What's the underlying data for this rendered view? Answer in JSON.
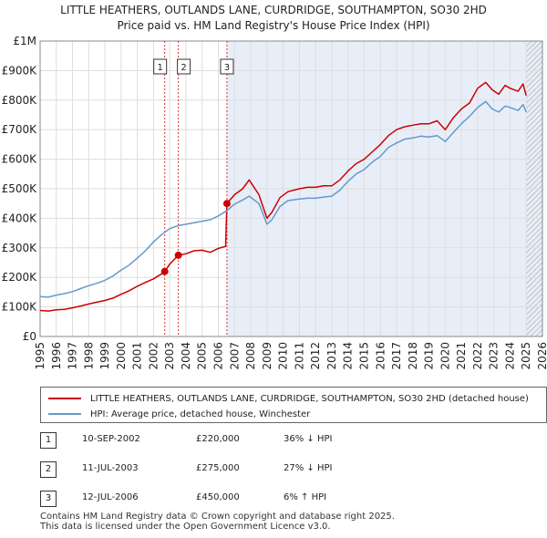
{
  "title": {
    "line1": "LITTLE HEATHERS, OUTLANDS LANE, CURDRIDGE, SOUTHAMPTON, SO30 2HD",
    "line2": "Price paid vs. HM Land Registry's House Price Index (HPI)"
  },
  "colors": {
    "property": "#cc0000",
    "hpi": "#6699cc",
    "shade": "#e8eef8",
    "grid": "#dddddd",
    "marker_line": "#cc0000"
  },
  "legend": {
    "property_label": "LITTLE HEATHERS, OUTLANDS LANE, CURDRIDGE, SOUTHAMPTON, SO30 2HD (detached house)",
    "hpi_label": "HPI: Average price, detached house, Winchester"
  },
  "transactions": [
    {
      "num": "1",
      "date": "10-SEP-2002",
      "price": "£220,000",
      "hpi_diff": "36% ↓ HPI"
    },
    {
      "num": "2",
      "date": "11-JUL-2003",
      "price": "£275,000",
      "hpi_diff": "27% ↓ HPI"
    },
    {
      "num": "3",
      "date": "12-JUL-2006",
      "price": "£450,000",
      "hpi_diff": "6% ↑ HPI"
    }
  ],
  "footer": {
    "line1": "Contains HM Land Registry data © Crown copyright and database right 2025.",
    "line2": "This data is licensed under the Open Government Licence v3.0."
  },
  "chart_data": {
    "type": "line",
    "title": "LITTLE HEATHERS, OUTLANDS LANE, CURDRIDGE, SOUTHAMPTON, SO30 2HD — Price paid vs. HM Land Registry's House Price Index (HPI)",
    "xlabel": "",
    "ylabel": "",
    "xlim": [
      1995,
      2026
    ],
    "ylim": [
      0,
      1000000
    ],
    "x_ticks": [
      1995,
      1996,
      1997,
      1998,
      1999,
      2000,
      2001,
      2002,
      2003,
      2004,
      2005,
      2006,
      2007,
      2008,
      2009,
      2010,
      2011,
      2012,
      2013,
      2014,
      2015,
      2016,
      2017,
      2018,
      2019,
      2020,
      2021,
      2022,
      2023,
      2024,
      2025,
      2026
    ],
    "y_ticks": [
      {
        "value": 0,
        "label": "£0"
      },
      {
        "value": 100000,
        "label": "£100K"
      },
      {
        "value": 200000,
        "label": "£200K"
      },
      {
        "value": 300000,
        "label": "£300K"
      },
      {
        "value": 400000,
        "label": "£400K"
      },
      {
        "value": 500000,
        "label": "£500K"
      },
      {
        "value": 600000,
        "label": "£600K"
      },
      {
        "value": 700000,
        "label": "£700K"
      },
      {
        "value": 800000,
        "label": "£800K"
      },
      {
        "value": 900000,
        "label": "£900K"
      },
      {
        "value": 1000000,
        "label": "£1M"
      }
    ],
    "grid": true,
    "shaded_range": [
      2006.53,
      2026
    ],
    "hatched_range": [
      2025.0,
      2026
    ],
    "sale_markers": [
      {
        "label": "1",
        "x": 2002.69,
        "y": 220000
      },
      {
        "label": "2",
        "x": 2003.53,
        "y": 275000
      },
      {
        "label": "3",
        "x": 2006.53,
        "y": 450000
      }
    ],
    "series": [
      {
        "name": "LITTLE HEATHERS, OUTLANDS LANE, CURDRIDGE, SOUTHAMPTON, SO30 2HD (detached house)",
        "color": "#cc0000",
        "x": [
          1995.0,
          1995.5,
          1996.0,
          1996.5,
          1997.0,
          1997.5,
          1998.0,
          1998.5,
          1999.0,
          1999.5,
          2000.0,
          2000.5,
          2001.0,
          2001.5,
          2002.0,
          2002.5,
          2002.69,
          2003.0,
          2003.53,
          2004.0,
          2004.5,
          2005.0,
          2005.5,
          2006.0,
          2006.45,
          2006.53,
          2007.0,
          2007.5,
          2007.9,
          2008.5,
          2009.0,
          2009.3,
          2009.8,
          2010.3,
          2011.0,
          2011.5,
          2012.0,
          2012.5,
          2013.0,
          2013.5,
          2014.0,
          2014.5,
          2015.0,
          2015.5,
          2016.0,
          2016.5,
          2017.0,
          2017.5,
          2018.0,
          2018.5,
          2019.0,
          2019.5,
          2020.0,
          2020.5,
          2021.0,
          2021.5,
          2022.0,
          2022.5,
          2022.9,
          2023.3,
          2023.7,
          2024.0,
          2024.5,
          2024.8,
          2025.0
        ],
        "values": [
          88000,
          86000,
          90000,
          92000,
          97000,
          103000,
          110000,
          116000,
          122000,
          130000,
          143000,
          155000,
          170000,
          183000,
          195000,
          212000,
          220000,
          245000,
          275000,
          280000,
          290000,
          292000,
          285000,
          298000,
          305000,
          450000,
          480000,
          500000,
          530000,
          480000,
          400000,
          420000,
          470000,
          490000,
          500000,
          505000,
          505000,
          510000,
          510000,
          530000,
          560000,
          585000,
          600000,
          625000,
          650000,
          680000,
          700000,
          710000,
          715000,
          720000,
          720000,
          730000,
          700000,
          740000,
          770000,
          790000,
          840000,
          860000,
          835000,
          820000,
          850000,
          840000,
          830000,
          855000,
          815000
        ]
      },
      {
        "name": "HPI: Average price, detached house, Winchester",
        "color": "#6699cc",
        "x": [
          1995.0,
          1995.5,
          1996.0,
          1996.5,
          1997.0,
          1997.5,
          1998.0,
          1998.5,
          1999.0,
          1999.5,
          2000.0,
          2000.5,
          2001.0,
          2001.5,
          2002.0,
          2002.5,
          2003.0,
          2003.5,
          2004.0,
          2004.5,
          2005.0,
          2005.5,
          2006.0,
          2006.5,
          2007.0,
          2007.5,
          2007.9,
          2008.5,
          2009.0,
          2009.3,
          2009.8,
          2010.3,
          2011.0,
          2011.5,
          2012.0,
          2012.5,
          2013.0,
          2013.5,
          2014.0,
          2014.5,
          2015.0,
          2015.5,
          2016.0,
          2016.5,
          2017.0,
          2017.5,
          2018.0,
          2018.5,
          2019.0,
          2019.5,
          2020.0,
          2020.5,
          2021.0,
          2021.5,
          2022.0,
          2022.5,
          2022.9,
          2023.3,
          2023.7,
          2024.0,
          2024.5,
          2024.8,
          2025.0
        ],
        "values": [
          135000,
          133000,
          140000,
          145000,
          152000,
          162000,
          172000,
          180000,
          190000,
          205000,
          225000,
          242000,
          265000,
          290000,
          320000,
          345000,
          365000,
          375000,
          380000,
          385000,
          390000,
          395000,
          408000,
          425000,
          448000,
          462000,
          475000,
          450000,
          380000,
          395000,
          440000,
          460000,
          465000,
          468000,
          468000,
          472000,
          475000,
          495000,
          525000,
          550000,
          565000,
          590000,
          610000,
          640000,
          655000,
          668000,
          672000,
          678000,
          675000,
          680000,
          660000,
          690000,
          720000,
          745000,
          775000,
          795000,
          770000,
          760000,
          780000,
          775000,
          765000,
          785000,
          760000
        ]
      }
    ]
  }
}
